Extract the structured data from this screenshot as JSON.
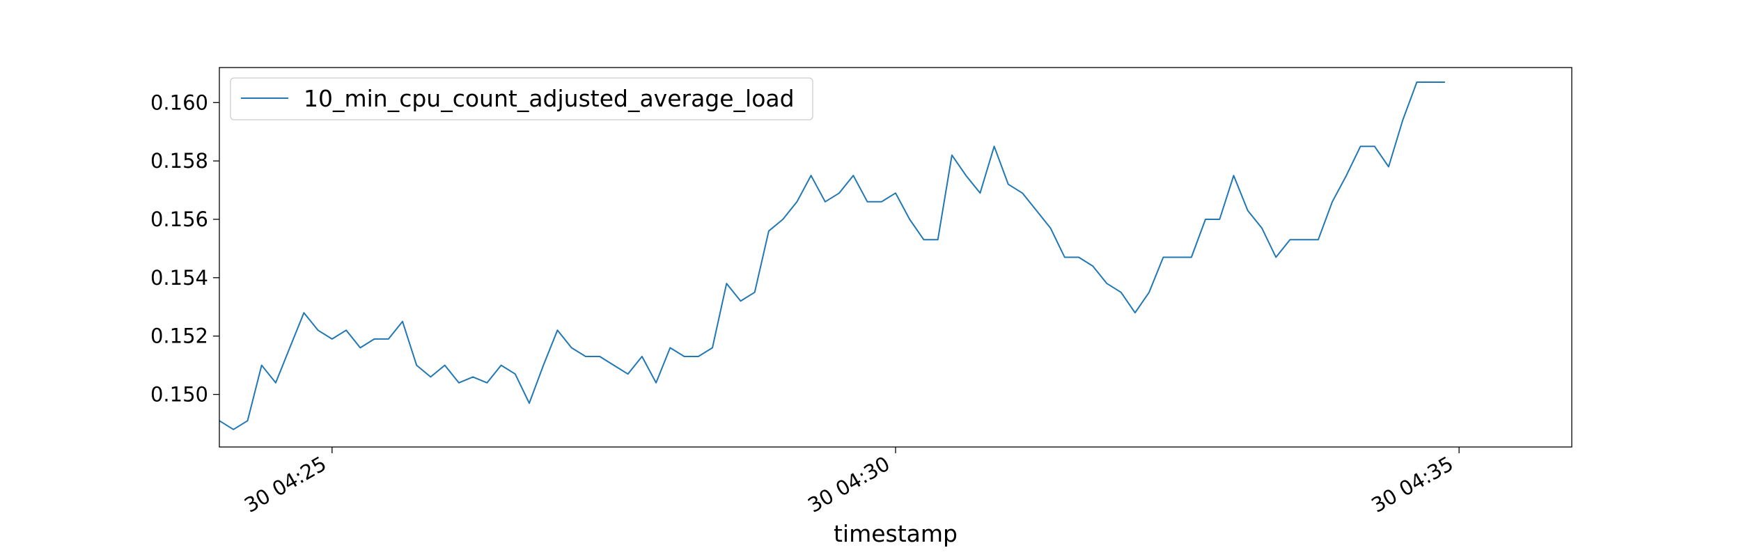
{
  "chart_data": {
    "type": "line",
    "title": "",
    "xlabel": "timestamp",
    "ylabel": "",
    "grid": false,
    "legend_position": "top-left",
    "series_color": "#1f77b4",
    "x_start": "04:24:00",
    "x_step_seconds": 7.5,
    "x_ticks": [
      {
        "time": "04:25:00",
        "label": "30 04:25"
      },
      {
        "time": "04:30:00",
        "label": "30 04:30"
      },
      {
        "time": "04:35:00",
        "label": "30 04:35"
      }
    ],
    "xlim": [
      "04:24:00",
      "04:36:00"
    ],
    "ylim": [
      0.1482,
      0.1612
    ],
    "y_ticks": [
      0.15,
      0.152,
      0.154,
      0.156,
      0.158,
      0.16
    ],
    "y_tick_labels": [
      "0.150",
      "0.152",
      "0.154",
      "0.156",
      "0.158",
      "0.160"
    ],
    "series": [
      {
        "name": "10_min_cpu_count_adjusted_average_load",
        "values": [
          0.1491,
          0.1488,
          0.1491,
          0.151,
          0.1504,
          0.1516,
          0.1528,
          0.1522,
          0.1519,
          0.1522,
          0.1516,
          0.1519,
          0.1519,
          0.1525,
          0.151,
          0.1506,
          0.151,
          0.1504,
          0.1506,
          0.1504,
          0.151,
          0.1507,
          0.1497,
          0.151,
          0.1522,
          0.1516,
          0.1513,
          0.1513,
          0.151,
          0.1507,
          0.1513,
          0.1504,
          0.1516,
          0.1513,
          0.1513,
          0.1516,
          0.1538,
          0.1532,
          0.1535,
          0.1556,
          0.156,
          0.1566,
          0.1575,
          0.1566,
          0.1569,
          0.1575,
          0.1566,
          0.1566,
          0.1569,
          0.156,
          0.1553,
          0.1553,
          0.1582,
          0.1575,
          0.1569,
          0.1585,
          0.1572,
          0.1569,
          0.1563,
          0.1557,
          0.1547,
          0.1547,
          0.1544,
          0.1538,
          0.1535,
          0.1528,
          0.1535,
          0.1547,
          0.1547,
          0.1547,
          0.156,
          0.156,
          0.1575,
          0.1563,
          0.1557,
          0.1547,
          0.1553,
          0.1553,
          0.1553,
          0.1566,
          0.1575,
          0.1585,
          0.1585,
          0.1578,
          0.1594,
          0.1607,
          0.1607,
          0.1607
        ]
      }
    ]
  }
}
